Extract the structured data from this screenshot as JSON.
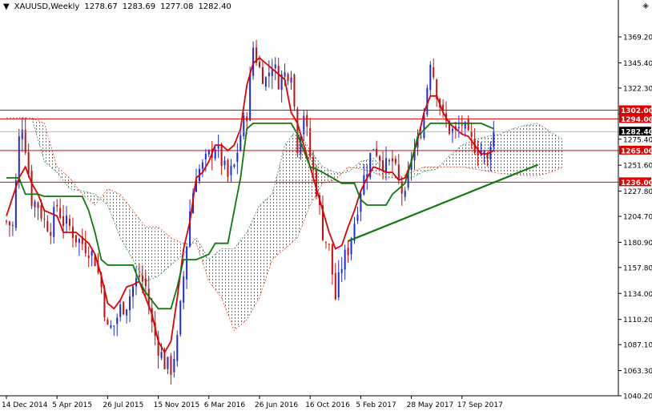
{
  "header": {
    "triangle": "▼",
    "symbol": "XAUUSD,Weekly",
    "open": "1278.67",
    "high": "1283.69",
    "low": "1277.08",
    "close": "1282.40",
    "corner_mark": "◈"
  },
  "colors": {
    "bull_candle": "#1d2bd6",
    "bear_candle": "#c01010",
    "tenkan": "#e00000",
    "kijun": "#0a7a0a",
    "cloud_bull": "#2e8b57",
    "cloud_bear": "#e34b1a",
    "hline": "#e00000",
    "trendline": "#137a13",
    "price_marker": "#000000"
  },
  "chart_data": {
    "type": "candlestick",
    "indicator": "ichimoku",
    "ylim": [
      1040.2,
      1392.0
    ],
    "price_ticks": [
      1369.2,
      1345.4,
      1322.3,
      1298.6,
      1275.4,
      1251.6,
      1227.8,
      1204.7,
      1180.9,
      1157.8,
      1134.0,
      1110.2,
      1087.1,
      1063.3,
      1040.2
    ],
    "price_tick_labels": [
      "1369.20",
      "1345.40",
      "1322.30",
      "1298.60",
      "1275.40",
      "1251.60",
      "1227.80",
      "1204.70",
      "1180.90",
      "1157.80",
      "1134.00",
      "1110.20",
      "1087.10",
      "1063.30",
      "1040.20"
    ],
    "date_labels": [
      {
        "label": "14 Dec 2014",
        "week": 0
      },
      {
        "label": "5 Apr 2015",
        "week": 16
      },
      {
        "label": "26 Jul 2015",
        "week": 32
      },
      {
        "label": "15 Nov 2015",
        "week": 48
      },
      {
        "label": "6 Mar 2016",
        "week": 64
      },
      {
        "label": "26 Jun 2016",
        "week": 80
      },
      {
        "label": "16 Oct 2016",
        "week": 96
      },
      {
        "label": "5 Feb 2017",
        "week": 112
      },
      {
        "label": "28 May 2017",
        "week": 128
      },
      {
        "label": "17 Sep 2017",
        "week": 144
      }
    ],
    "horizontal_levels": [
      {
        "value": 1302.0,
        "label": "1302.00"
      },
      {
        "value": 1294.0,
        "label": "1294.00"
      },
      {
        "value": 1265.0,
        "label": "1265.00"
      },
      {
        "value": 1236.0,
        "label": "1236.00"
      }
    ],
    "last_price": {
      "value": 1282.4,
      "label": "1282.40"
    },
    "trendline": {
      "from": {
        "week": 108,
        "price": 1182
      },
      "to": {
        "week": 168,
        "price": 1252
      }
    },
    "close_path": [
      [
        0,
        1200
      ],
      [
        2,
        1195
      ],
      [
        4,
        1275
      ],
      [
        5,
        1290
      ],
      [
        6,
        1270
      ],
      [
        8,
        1220
      ],
      [
        10,
        1215
      ],
      [
        12,
        1200
      ],
      [
        14,
        1195
      ],
      [
        16,
        1215
      ],
      [
        18,
        1200
      ],
      [
        20,
        1195
      ],
      [
        22,
        1185
      ],
      [
        24,
        1180
      ],
      [
        26,
        1175
      ],
      [
        28,
        1165
      ],
      [
        30,
        1140
      ],
      [
        32,
        1100
      ],
      [
        34,
        1105
      ],
      [
        36,
        1120
      ],
      [
        38,
        1125
      ],
      [
        40,
        1140
      ],
      [
        42,
        1150
      ],
      [
        44,
        1140
      ],
      [
        46,
        1105
      ],
      [
        48,
        1085
      ],
      [
        50,
        1070
      ],
      [
        52,
        1065
      ],
      [
        54,
        1090
      ],
      [
        56,
        1150
      ],
      [
        58,
        1210
      ],
      [
        60,
        1245
      ],
      [
        62,
        1250
      ],
      [
        64,
        1260
      ],
      [
        66,
        1270
      ],
      [
        68,
        1255
      ],
      [
        70,
        1240
      ],
      [
        72,
        1250
      ],
      [
        74,
        1280
      ],
      [
        76,
        1300
      ],
      [
        78,
        1360
      ],
      [
        80,
        1340
      ],
      [
        82,
        1330
      ],
      [
        84,
        1345
      ],
      [
        86,
        1330
      ],
      [
        88,
        1335
      ],
      [
        90,
        1340
      ],
      [
        92,
        1270
      ],
      [
        94,
        1300
      ],
      [
        96,
        1260
      ],
      [
        98,
        1230
      ],
      [
        100,
        1190
      ],
      [
        102,
        1175
      ],
      [
        104,
        1130
      ],
      [
        106,
        1160
      ],
      [
        108,
        1175
      ],
      [
        110,
        1200
      ],
      [
        112,
        1230
      ],
      [
        114,
        1250
      ],
      [
        116,
        1270
      ],
      [
        118,
        1260
      ],
      [
        120,
        1250
      ],
      [
        122,
        1255
      ],
      [
        124,
        1235
      ],
      [
        126,
        1220
      ],
      [
        128,
        1260
      ],
      [
        130,
        1270
      ],
      [
        132,
        1300
      ],
      [
        134,
        1350
      ],
      [
        136,
        1320
      ],
      [
        138,
        1295
      ],
      [
        140,
        1285
      ],
      [
        142,
        1280
      ],
      [
        144,
        1290
      ],
      [
        146,
        1275
      ],
      [
        148,
        1270
      ],
      [
        150,
        1265
      ],
      [
        152,
        1255
      ],
      [
        153,
        1275
      ],
      [
        154,
        1282
      ]
    ],
    "tenkan": [
      [
        0,
        1205
      ],
      [
        4,
        1240
      ],
      [
        6,
        1250
      ],
      [
        8,
        1235
      ],
      [
        10,
        1225
      ],
      [
        12,
        1210
      ],
      [
        16,
        1205
      ],
      [
        18,
        1190
      ],
      [
        22,
        1190
      ],
      [
        26,
        1180
      ],
      [
        28,
        1170
      ],
      [
        30,
        1150
      ],
      [
        32,
        1125
      ],
      [
        34,
        1120
      ],
      [
        36,
        1128
      ],
      [
        38,
        1140
      ],
      [
        40,
        1142
      ],
      [
        42,
        1145
      ],
      [
        44,
        1130
      ],
      [
        46,
        1115
      ],
      [
        48,
        1090
      ],
      [
        50,
        1080
      ],
      [
        52,
        1090
      ],
      [
        54,
        1130
      ],
      [
        56,
        1175
      ],
      [
        58,
        1200
      ],
      [
        60,
        1240
      ],
      [
        62,
        1245
      ],
      [
        64,
        1255
      ],
      [
        66,
        1270
      ],
      [
        68,
        1270
      ],
      [
        70,
        1265
      ],
      [
        72,
        1270
      ],
      [
        74,
        1285
      ],
      [
        76,
        1325
      ],
      [
        78,
        1345
      ],
      [
        80,
        1350
      ],
      [
        82,
        1345
      ],
      [
        84,
        1340
      ],
      [
        86,
        1335
      ],
      [
        88,
        1330
      ],
      [
        90,
        1300
      ],
      [
        92,
        1290
      ],
      [
        94,
        1270
      ],
      [
        96,
        1250
      ],
      [
        98,
        1230
      ],
      [
        100,
        1210
      ],
      [
        102,
        1190
      ],
      [
        104,
        1175
      ],
      [
        106,
        1178
      ],
      [
        108,
        1195
      ],
      [
        110,
        1210
      ],
      [
        112,
        1228
      ],
      [
        114,
        1240
      ],
      [
        116,
        1250
      ],
      [
        118,
        1248
      ],
      [
        120,
        1245
      ],
      [
        122,
        1245
      ],
      [
        124,
        1238
      ],
      [
        126,
        1240
      ],
      [
        128,
        1255
      ],
      [
        130,
        1275
      ],
      [
        132,
        1300
      ],
      [
        134,
        1315
      ],
      [
        136,
        1315
      ],
      [
        138,
        1300
      ],
      [
        140,
        1290
      ],
      [
        142,
        1285
      ],
      [
        144,
        1280
      ],
      [
        146,
        1278
      ],
      [
        148,
        1270
      ],
      [
        150,
        1262
      ],
      [
        152,
        1262
      ],
      [
        154,
        1265
      ]
    ],
    "kijun": [
      [
        0,
        1240
      ],
      [
        4,
        1240
      ],
      [
        6,
        1225
      ],
      [
        10,
        1225
      ],
      [
        12,
        1223
      ],
      [
        24,
        1223
      ],
      [
        26,
        1210
      ],
      [
        28,
        1190
      ],
      [
        30,
        1165
      ],
      [
        32,
        1160
      ],
      [
        40,
        1160
      ],
      [
        42,
        1145
      ],
      [
        44,
        1135
      ],
      [
        48,
        1120
      ],
      [
        50,
        1120
      ],
      [
        52,
        1120
      ],
      [
        54,
        1140
      ],
      [
        56,
        1165
      ],
      [
        60,
        1165
      ],
      [
        64,
        1170
      ],
      [
        66,
        1180
      ],
      [
        70,
        1180
      ],
      [
        72,
        1210
      ],
      [
        74,
        1240
      ],
      [
        76,
        1285
      ],
      [
        78,
        1290
      ],
      [
        90,
        1290
      ],
      [
        92,
        1280
      ],
      [
        94,
        1265
      ],
      [
        96,
        1250
      ],
      [
        98,
        1248
      ],
      [
        100,
        1245
      ],
      [
        106,
        1235
      ],
      [
        110,
        1235
      ],
      [
        112,
        1220
      ],
      [
        114,
        1215
      ],
      [
        118,
        1215
      ],
      [
        120,
        1215
      ],
      [
        122,
        1225
      ],
      [
        126,
        1235
      ],
      [
        128,
        1255
      ],
      [
        130,
        1278
      ],
      [
        134,
        1290
      ],
      [
        150,
        1290
      ],
      [
        154,
        1285
      ]
    ],
    "senkou_a": [
      [
        0,
        1295
      ],
      [
        8,
        1295
      ],
      [
        12,
        1255
      ],
      [
        16,
        1245
      ],
      [
        20,
        1230
      ],
      [
        24,
        1228
      ],
      [
        28,
        1225
      ],
      [
        32,
        1215
      ],
      [
        36,
        1185
      ],
      [
        40,
        1165
      ],
      [
        44,
        1145
      ],
      [
        48,
        1150
      ],
      [
        52,
        1160
      ],
      [
        56,
        1170
      ],
      [
        60,
        1185
      ],
      [
        64,
        1165
      ],
      [
        68,
        1175
      ],
      [
        72,
        1175
      ],
      [
        76,
        1190
      ],
      [
        80,
        1215
      ],
      [
        84,
        1225
      ],
      [
        88,
        1270
      ],
      [
        92,
        1285
      ],
      [
        96,
        1265
      ],
      [
        100,
        1250
      ],
      [
        104,
        1245
      ],
      [
        108,
        1245
      ],
      [
        112,
        1255
      ],
      [
        116,
        1258
      ],
      [
        120,
        1245
      ],
      [
        124,
        1240
      ],
      [
        128,
        1240
      ],
      [
        132,
        1246
      ],
      [
        136,
        1248
      ],
      [
        140,
        1260
      ],
      [
        144,
        1270
      ],
      [
        148,
        1275
      ],
      [
        152,
        1278
      ],
      [
        156,
        1280
      ],
      [
        160,
        1285
      ],
      [
        164,
        1288
      ],
      [
        168,
        1290
      ],
      [
        172,
        1282
      ],
      [
        176,
        1275
      ]
    ],
    "senkou_b": [
      [
        0,
        1295
      ],
      [
        8,
        1295
      ],
      [
        12,
        1290
      ],
      [
        16,
        1250
      ],
      [
        20,
        1240
      ],
      [
        24,
        1225
      ],
      [
        28,
        1215
      ],
      [
        32,
        1230
      ],
      [
        36,
        1225
      ],
      [
        40,
        1210
      ],
      [
        44,
        1195
      ],
      [
        48,
        1195
      ],
      [
        52,
        1185
      ],
      [
        56,
        1180
      ],
      [
        60,
        1180
      ],
      [
        64,
        1145
      ],
      [
        68,
        1130
      ],
      [
        72,
        1100
      ],
      [
        76,
        1110
      ],
      [
        80,
        1130
      ],
      [
        84,
        1165
      ],
      [
        88,
        1175
      ],
      [
        92,
        1185
      ],
      [
        96,
        1215
      ],
      [
        100,
        1235
      ],
      [
        104,
        1238
      ],
      [
        108,
        1250
      ],
      [
        112,
        1248
      ],
      [
        116,
        1245
      ],
      [
        120,
        1240
      ],
      [
        124,
        1240
      ],
      [
        128,
        1245
      ],
      [
        132,
        1250
      ],
      [
        136,
        1250
      ],
      [
        140,
        1250
      ],
      [
        144,
        1250
      ],
      [
        148,
        1248
      ],
      [
        152,
        1246
      ],
      [
        156,
        1244
      ],
      [
        160,
        1243
      ],
      [
        164,
        1242
      ],
      [
        168,
        1242
      ],
      [
        172,
        1245
      ],
      [
        176,
        1250
      ]
    ]
  }
}
